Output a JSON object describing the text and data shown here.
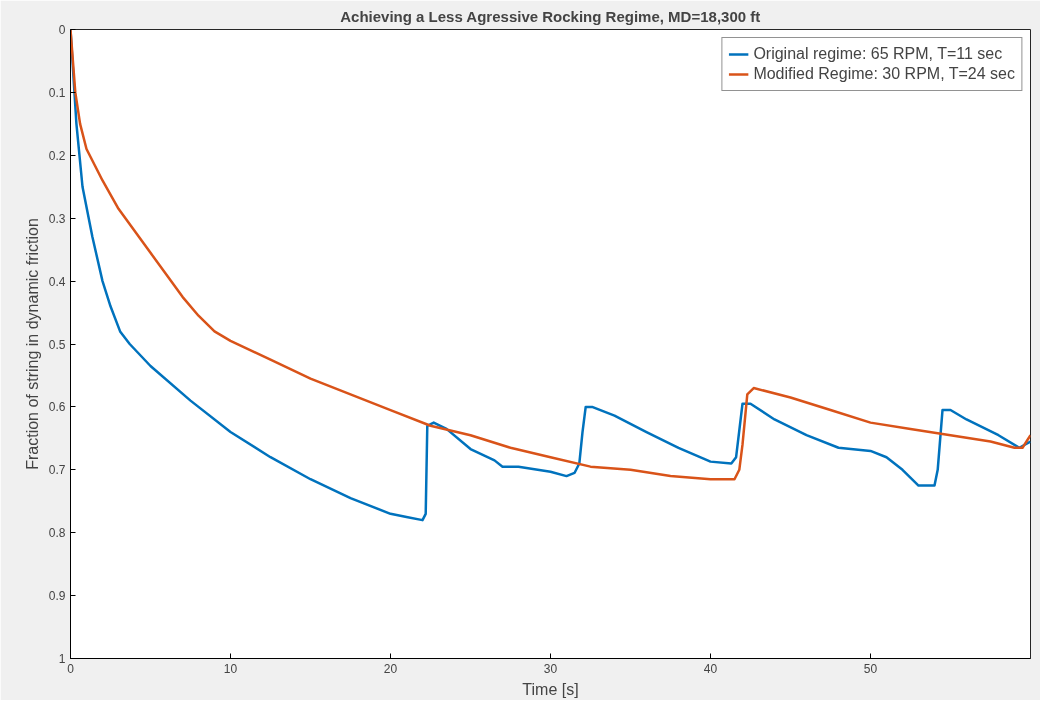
{
  "chart_data": {
    "type": "line",
    "title": "Achieving a Less Agressive Rocking Regime, MD=18,300 ft",
    "xlabel": "Time [s]",
    "ylabel": "Fraction of string in dynamic friction",
    "xlim": [
      0,
      60
    ],
    "ylim": [
      1,
      0
    ],
    "xticks": [
      0,
      10,
      20,
      30,
      40,
      50
    ],
    "yticks": [
      0,
      0.1,
      0.2,
      0.3,
      0.4,
      0.5,
      0.6,
      0.7,
      0.8,
      0.9,
      1
    ],
    "grid": false,
    "legend": "top right",
    "line_style": "solid",
    "series": [
      {
        "name": "Original regime: 65 RPM, T=11 sec",
        "color": "#0072bd",
        "x": [
          0,
          0.37,
          0.75,
          1.37,
          2,
          2.5,
          3.1,
          3.7,
          5,
          7.5,
          10,
          12.5,
          15,
          17.5,
          20,
          21,
          22,
          22.2,
          22.3,
          22.7,
          23.5,
          25,
          26.5,
          27,
          28,
          30,
          31,
          31.5,
          31.8,
          32,
          32.2,
          32.6,
          34,
          36,
          38,
          40,
          41.3,
          41.6,
          42,
          42.5,
          44,
          46,
          48,
          50,
          51,
          52,
          53,
          54,
          54.2,
          54.5,
          55,
          56,
          58,
          59.3,
          60
        ],
        "values": [
          0,
          0.15,
          0.25,
          0.33,
          0.4,
          0.44,
          0.48,
          0.5,
          0.535,
          0.59,
          0.64,
          0.68,
          0.715,
          0.745,
          0.77,
          0.775,
          0.78,
          0.77,
          0.63,
          0.625,
          0.635,
          0.667,
          0.685,
          0.695,
          0.695,
          0.703,
          0.71,
          0.705,
          0.69,
          0.64,
          0.6,
          0.6,
          0.614,
          0.64,
          0.665,
          0.687,
          0.69,
          0.68,
          0.595,
          0.595,
          0.62,
          0.645,
          0.665,
          0.67,
          0.68,
          0.7,
          0.725,
          0.725,
          0.7,
          0.605,
          0.605,
          0.62,
          0.645,
          0.665,
          0.655
        ]
      },
      {
        "name": "Modified Regime: 30 RPM, T=24 sec",
        "color": "#d95319",
        "x": [
          0,
          0.3,
          0.6,
          1,
          2,
          3,
          4,
          5,
          6,
          7,
          8,
          9,
          10,
          12.5,
          15,
          17.5,
          20,
          22.5,
          25,
          27.5,
          30,
          32.5,
          35,
          37.5,
          40,
          41.5,
          41.8,
          42,
          42.3,
          42.7,
          45,
          47.5,
          50,
          52.5,
          55,
          57.5,
          59,
          59.5,
          60
        ],
        "values": [
          0,
          0.1,
          0.15,
          0.19,
          0.24,
          0.285,
          0.32,
          0.355,
          0.39,
          0.425,
          0.455,
          0.48,
          0.495,
          0.525,
          0.555,
          0.58,
          0.605,
          0.63,
          0.645,
          0.665,
          0.68,
          0.695,
          0.7,
          0.71,
          0.715,
          0.715,
          0.7,
          0.66,
          0.58,
          0.57,
          0.585,
          0.605,
          0.625,
          0.635,
          0.645,
          0.655,
          0.665,
          0.665,
          0.645
        ]
      }
    ]
  }
}
